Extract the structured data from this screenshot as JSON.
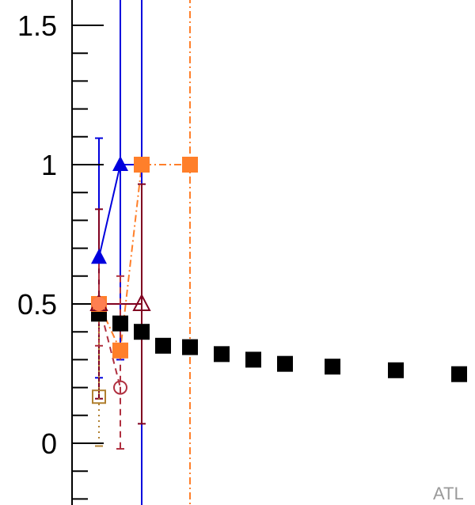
{
  "chart_data": {
    "type": "scatter",
    "title": "",
    "xlabel": "",
    "ylabel": "",
    "ylim": [
      -0.2,
      1.6
    ],
    "xlim": [
      0,
      600
    ],
    "y_ticks": [
      {
        "value": 0,
        "label": "0"
      },
      {
        "value": 0.5,
        "label": "0.5"
      },
      {
        "value": 1,
        "label": "1"
      },
      {
        "value": 1.5,
        "label": "1.5"
      }
    ],
    "y_minor_step": 0.1,
    "watermark": "ATL",
    "series": [
      {
        "marker": "filled-square",
        "color": "#000000",
        "line": "none",
        "points": [
          {
            "x": 125,
            "y": 0.465
          },
          {
            "x": 152,
            "y": 0.43
          },
          {
            "x": 179,
            "y": 0.4
          },
          {
            "x": 206,
            "y": 0.35
          },
          {
            "x": 240,
            "y": 0.345
          },
          {
            "x": 280,
            "y": 0.32
          },
          {
            "x": 320,
            "y": 0.3
          },
          {
            "x": 360,
            "y": 0.285
          },
          {
            "x": 420,
            "y": 0.275
          },
          {
            "x": 500,
            "y": 0.262
          },
          {
            "x": 580,
            "y": 0.248
          }
        ]
      },
      {
        "marker": "filled-triangle",
        "color": "#0000dd",
        "line": "solid",
        "points": [
          {
            "x": 125,
            "y": 0.667,
            "err_lo": 0.235,
            "err_hi": 1.095
          },
          {
            "x": 152,
            "y": 1.0,
            "err_lo": 0.3,
            "err_hi": 1.7
          },
          {
            "x": 179,
            "y": 1.0,
            "err_lo": -0.3,
            "err_hi": 1.7
          }
        ]
      },
      {
        "marker": "filled-square",
        "color": "#ff7f2a",
        "line": "dashdot",
        "points": [
          {
            "x": 125,
            "y": 0.5
          },
          {
            "x": 152,
            "y": 0.333
          },
          {
            "x": 179,
            "y": 1.0
          },
          {
            "x": 240,
            "y": 1.0,
            "err_lo": -0.3,
            "err_hi": 1.7
          }
        ]
      },
      {
        "marker": "open-triangle",
        "color": "#800020",
        "line": "solid",
        "points": [
          {
            "x": 125,
            "y": 0.5,
            "err_lo": 0.16,
            "err_hi": 0.84
          },
          {
            "x": 179,
            "y": 0.5,
            "err_lo": 0.07,
            "err_hi": 0.93
          }
        ]
      },
      {
        "marker": "open-circle",
        "color": "#b03040",
        "line": "dashed",
        "points": [
          {
            "x": 125,
            "y": 0.5,
            "err_lo": 0.35,
            "err_hi": 0.65
          },
          {
            "x": 152,
            "y": 0.2,
            "err_lo": -0.02,
            "err_hi": 0.6
          }
        ]
      },
      {
        "marker": "filled-circle",
        "color": "#ff7f50",
        "line": "none",
        "points": [
          {
            "x": 125,
            "y": 0.5
          }
        ]
      },
      {
        "marker": "open-square",
        "color": "#b08030",
        "line": "dotted",
        "points": [
          {
            "x": 125,
            "y": 0.167,
            "err_lo": -0.01,
            "err_hi": 0.5
          }
        ]
      }
    ]
  }
}
